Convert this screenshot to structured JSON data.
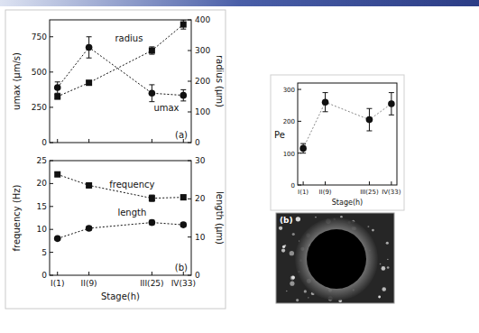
{
  "chart_data": [
    {
      "type": "line",
      "panel_label": "(a)",
      "x": [
        1,
        9,
        25,
        33
      ],
      "xlim": [
        -1,
        35
      ],
      "xticks": [
        {
          "value": 1,
          "label": "I(1)"
        },
        {
          "value": 9,
          "label": "II(9)"
        },
        {
          "value": 25,
          "label": "III(25)"
        },
        {
          "value": 33,
          "label": "IV(33)"
        }
      ],
      "tick_labels": "y",
      "ylabel": "umax (μm/s)",
      "ylim": [
        0,
        870
      ],
      "yticks": [
        0,
        250,
        500,
        750
      ],
      "y2label": "radius (μm)",
      "y2lim": [
        0,
        400
      ],
      "y2ticks": [
        0,
        100,
        200,
        300,
        400
      ],
      "grid": false,
      "series": [
        {
          "name": "umax",
          "color": "#111111",
          "marker": "circle",
          "line_style": "dotted",
          "axis": "y",
          "values": [
            390,
            675,
            350,
            335
          ],
          "errors": [
            40,
            75,
            60,
            40
          ]
        },
        {
          "name": "radius",
          "color": "#111111",
          "marker": "square",
          "line_style": "dotted",
          "axis": "y2",
          "values": [
            150,
            195,
            300,
            385
          ],
          "errors": [
            8,
            5,
            12,
            15
          ]
        }
      ]
    },
    {
      "type": "line",
      "panel_label": "(b)",
      "x": [
        1,
        9,
        25,
        33
      ],
      "xlim": [
        -1,
        35
      ],
      "xticks": [
        {
          "value": 1,
          "label": "I(1)"
        },
        {
          "value": 9,
          "label": "II(9)"
        },
        {
          "value": 25,
          "label": "III(25)"
        },
        {
          "value": 33,
          "label": "IV(33)"
        }
      ],
      "xlabel": "Stage(h)",
      "ylabel": "frequency (Hz)",
      "ylim": [
        0,
        25
      ],
      "yticks": [
        0,
        5,
        10,
        15,
        20,
        25
      ],
      "y2label": "length (μm)",
      "y2lim": [
        0,
        30
      ],
      "y2ticks": [
        0,
        10,
        20,
        30
      ],
      "grid": false,
      "series": [
        {
          "name": "frequency",
          "color": "#111111",
          "marker": "square",
          "line_style": "dotted",
          "axis": "y",
          "values": [
            22,
            19.6,
            16.8,
            17
          ],
          "errors": [
            0.4,
            0.4,
            0.7,
            0.5
          ]
        },
        {
          "name": "length",
          "color": "#111111",
          "marker": "circle",
          "line_style": "dotted",
          "axis": "y2",
          "values": [
            9.6,
            12.3,
            13.8,
            13.2
          ],
          "errors": [
            0.4,
            0.5,
            0.6,
            0.5
          ]
        }
      ]
    },
    {
      "type": "line",
      "x": [
        1,
        9,
        25,
        33
      ],
      "xlim": [
        -1,
        35
      ],
      "xticks": [
        {
          "value": 1,
          "label": "I(1)"
        },
        {
          "value": 9,
          "label": "II(9)"
        },
        {
          "value": 25,
          "label": "III(25)"
        },
        {
          "value": 33,
          "label": "IV(33)"
        }
      ],
      "xlabel": "Stage(h)",
      "ylabel": "Pe",
      "ylim": [
        0,
        320
      ],
      "yticks": [
        0,
        100,
        200,
        300
      ],
      "grid": false,
      "color": "#111111",
      "marker": "circle",
      "line_style": "dotted",
      "values": [
        115,
        260,
        205,
        255
      ],
      "errors": [
        15,
        30,
        35,
        35
      ]
    }
  ],
  "photo": {
    "label": "(b)"
  }
}
